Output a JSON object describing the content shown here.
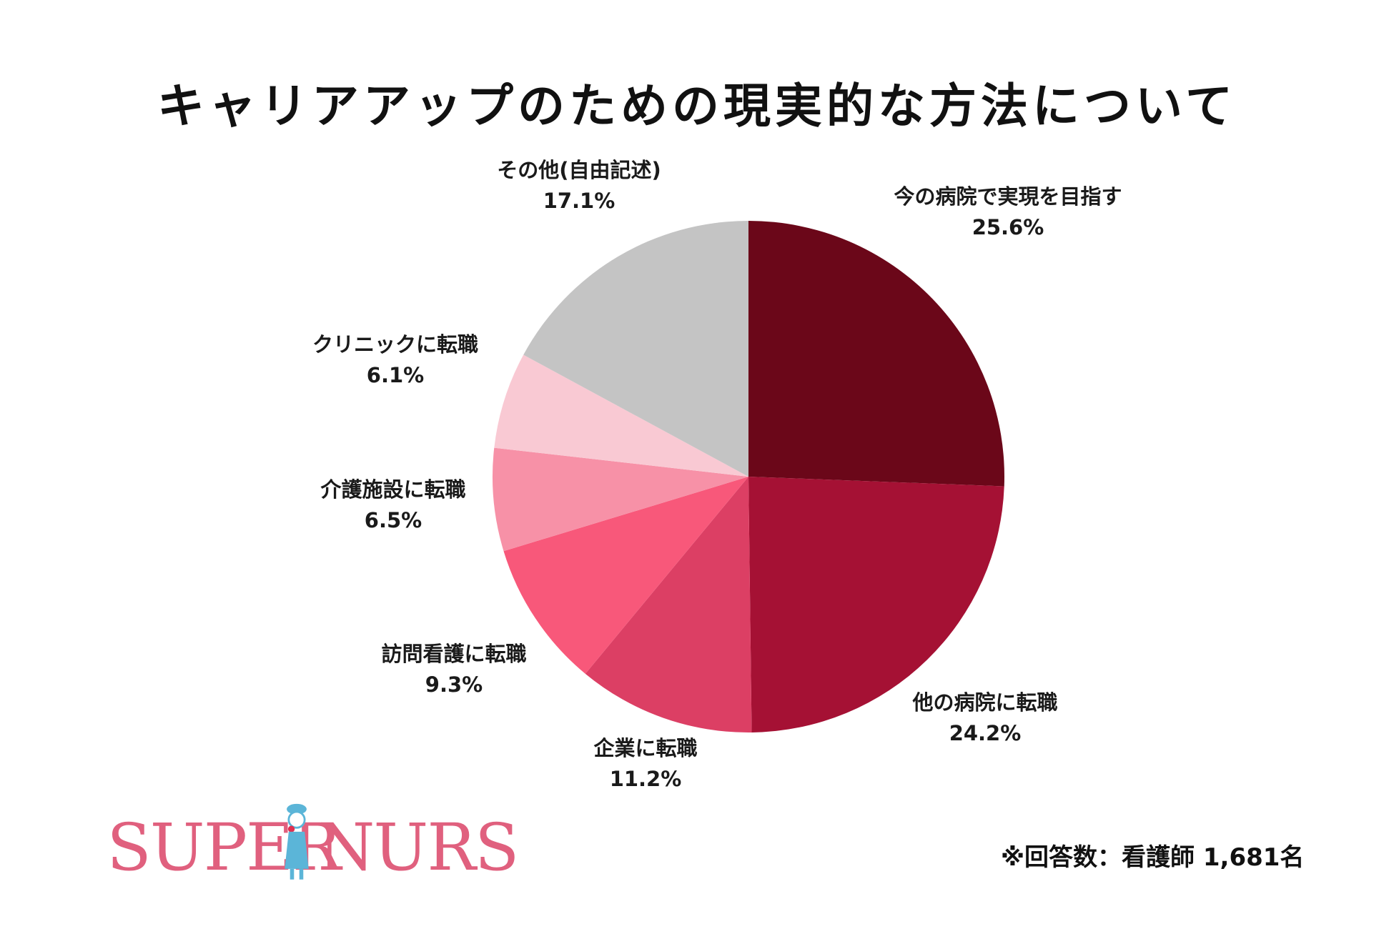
{
  "title": "キャリアアップのための現実的な方法について",
  "note": "※回答数：看護師 1,681名",
  "logo": {
    "text_left": "SUPER",
    "text_right": "NURSE"
  },
  "chart_data": {
    "type": "pie",
    "title": "キャリアアップのための現実的な方法について",
    "slices": [
      {
        "label": "今の病院で実現を目指す",
        "value": 25.6,
        "display": "25.6%",
        "color": "#6b0719"
      },
      {
        "label": "他の病院に転職",
        "value": 24.2,
        "display": "24.2%",
        "color": "#a51134"
      },
      {
        "label": "企業に転職",
        "value": 11.2,
        "display": "11.2%",
        "color": "#dc3f64"
      },
      {
        "label": "訪問看護に転職",
        "value": 9.3,
        "display": "9.3%",
        "color": "#f8587a"
      },
      {
        "label": "介護施設に転職",
        "value": 6.5,
        "display": "6.5%",
        "color": "#f791a7"
      },
      {
        "label": "クリニックに転職",
        "value": 6.1,
        "display": "6.1%",
        "color": "#f9c9d3"
      },
      {
        "label": "その他(自由記述)",
        "value": 17.1,
        "display": "17.1%",
        "color": "#c4c4c4"
      }
    ]
  }
}
